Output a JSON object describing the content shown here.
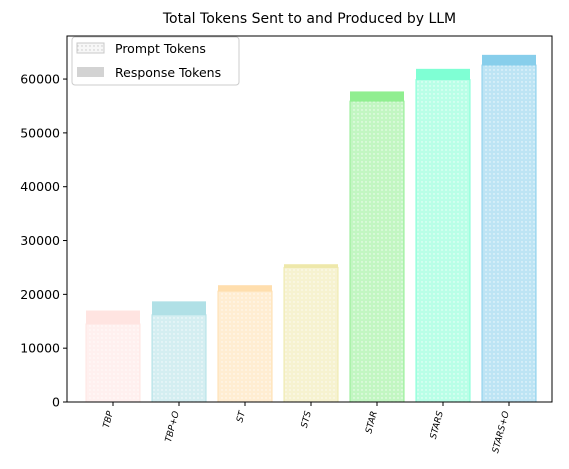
{
  "chart_data": {
    "type": "bar",
    "stacked": true,
    "title": "Total Tokens Sent to and Produced by LLM",
    "xlabel": "",
    "ylabel": "",
    "ylim": [
      0,
      68000
    ],
    "yticks": [
      0,
      10000,
      20000,
      30000,
      40000,
      50000,
      60000
    ],
    "categories": [
      "TBP",
      "TBP+O",
      "ST",
      "STS",
      "STAR",
      "STARS",
      "STARS+O"
    ],
    "colors": [
      "#ffe4e1",
      "#b0e0e6",
      "#ffdead",
      "#eee8aa",
      "#90ee90",
      "#7fffd4",
      "#87ceeb"
    ],
    "series": [
      {
        "name": "Prompt Tokens",
        "hatch": "dots",
        "values": [
          14500,
          16200,
          20600,
          25000,
          55900,
          59900,
          62600
        ]
      },
      {
        "name": "Response Tokens",
        "hatch": "none",
        "values": [
          2500,
          2500,
          1100,
          600,
          1800,
          2000,
          1900
        ]
      }
    ],
    "legend": {
      "position": "top-left",
      "entries": [
        "Prompt Tokens",
        "Response Tokens"
      ]
    }
  }
}
